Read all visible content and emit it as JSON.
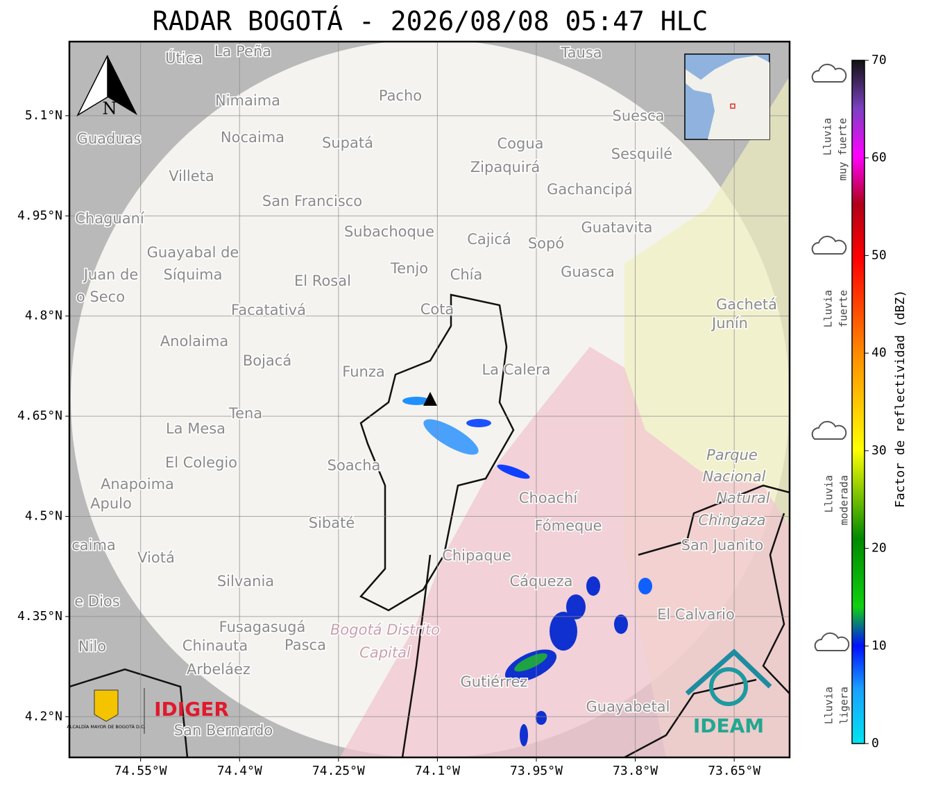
{
  "map": {
    "title": "RADAR BOGOTÁ - 2026/08/08 05:47 HLC",
    "xlim": [
      -74.658,
      -73.566
    ],
    "ylim": [
      4.139,
      5.211
    ],
    "xticks": [
      {
        "value": -74.55,
        "label": "74.55°W"
      },
      {
        "value": -74.4,
        "label": "74.4°W"
      },
      {
        "value": -74.25,
        "label": "74.25°W"
      },
      {
        "value": -74.1,
        "label": "74.1°W"
      },
      {
        "value": -73.95,
        "label": "73.95°W"
      },
      {
        "value": -73.8,
        "label": "73.8°W"
      },
      {
        "value": -73.65,
        "label": "73.65°W"
      }
    ],
    "yticks": [
      {
        "value": 5.1,
        "label": "5.1°N"
      },
      {
        "value": 4.95,
        "label": "4.95°N"
      },
      {
        "value": 4.8,
        "label": "4.8°N"
      },
      {
        "value": 4.65,
        "label": "4.65°N"
      },
      {
        "value": 4.5,
        "label": "4.5°N"
      },
      {
        "value": 4.35,
        "label": "4.35°N"
      },
      {
        "value": 4.2,
        "label": "4.2°N"
      }
    ],
    "north": "N",
    "places": [
      "La Peña",
      "Útica",
      "Tausa",
      "Pacho",
      "Nimaima",
      "Guaduas",
      "Nocaima",
      "Supatá",
      "Cogua",
      "Suesca",
      "Sesquilé",
      "Villeta",
      "Zipaquirá",
      "Gachancipá",
      "San Francisco",
      "Chaguaní",
      "Subachoque",
      "Guatavita",
      "Cajicá",
      "Sopó",
      "Guayabal de",
      "Síquima",
      "Tenjo",
      "Juan de",
      "Chía",
      "Guasca",
      "El Rosal",
      "o Seco",
      "Facatativá",
      "Cota",
      "Gachetá",
      "Junín",
      "Anolaima",
      "Bojacá",
      "Funza",
      "La Calera",
      "Tena",
      "La Mesa",
      "Soacha",
      "El Colegio",
      "Parque",
      "Anapoima",
      "Nacional",
      "Apulo",
      "Choachí",
      "Natural",
      "Chingaza",
      "Sibaté",
      "Fómeque",
      "San Juanito",
      "caima",
      "Viotá",
      "Chipaque",
      "Silvania",
      "Cáqueza",
      "e Dios",
      "El Calvario",
      "Fusagasugá",
      "Bogotá Distrito",
      "Chinauta",
      "Pasca",
      "Nilo",
      "Capital",
      "Arbeláez",
      "Gutiérrez",
      "Guayabetal",
      "San Bernardo"
    ],
    "logos": {
      "alcaldia": "ALCALDÍA MAYOR DE BOGOTÁ D.C.",
      "idiger": "IDIGER",
      "ideam": "IDEAM"
    }
  },
  "colorbar": {
    "label": "Factor de reflectividad (dBZ)",
    "lim": [
      0,
      70
    ],
    "ticks": [
      0,
      10,
      20,
      30,
      40,
      50,
      60,
      70
    ],
    "categories": [
      [
        "Lluvia",
        "muy fuerte"
      ],
      [
        "Lluvia",
        "fuerte"
      ],
      [
        "Lluvia",
        "moderada"
      ],
      [
        "Lluvia",
        "ligera"
      ]
    ]
  }
}
